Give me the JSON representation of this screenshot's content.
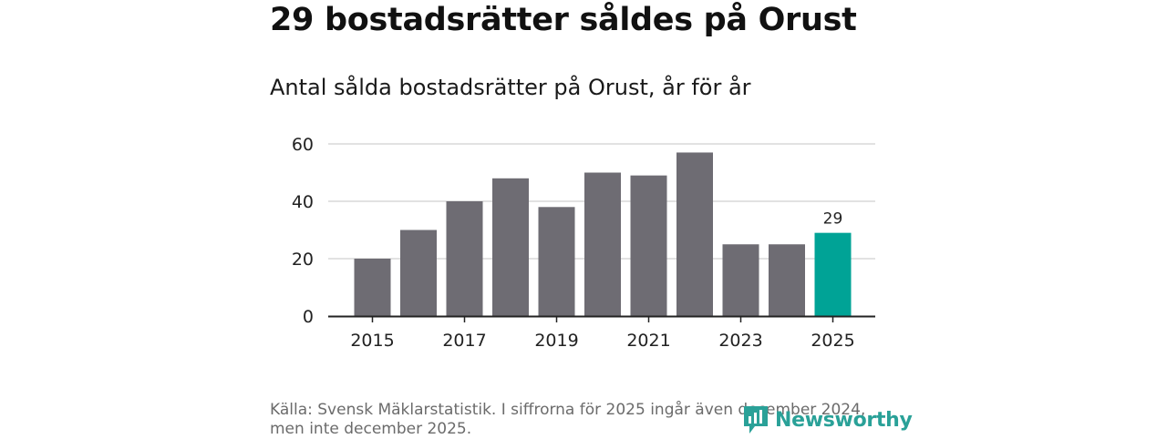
{
  "title": "29 bostadsrätter såldes på Orust",
  "subtitle": "Antal sålda bostadsrätter på Orust, år för år",
  "source": "Källa: Svensk Mäklarstatistik. I siffrorna för 2025 ingår även december 2024, men inte december 2025.",
  "brand": "Newsworthy",
  "colors": {
    "bar": "#6e6c73",
    "highlight": "#00a396",
    "grid": "#d9d9d9",
    "axis": "#222222",
    "text": "#222222"
  },
  "chart_data": {
    "type": "bar",
    "categories": [
      "2015",
      "2016",
      "2017",
      "2018",
      "2019",
      "2020",
      "2021",
      "2022",
      "2023",
      "2024",
      "2025"
    ],
    "values": [
      20,
      30,
      40,
      48,
      38,
      50,
      49,
      57,
      25,
      25,
      29
    ],
    "highlight_index": 10,
    "highlight_label": "29",
    "x_tick_labels": [
      "2015",
      "2017",
      "2019",
      "2021",
      "2023",
      "2025"
    ],
    "y_ticks": [
      0,
      20,
      40,
      60
    ],
    "ylim": [
      0,
      60
    ],
    "title": "Antal sålda bostadsrätter på Orust, år för år",
    "xlabel": "",
    "ylabel": "",
    "grid": true
  }
}
